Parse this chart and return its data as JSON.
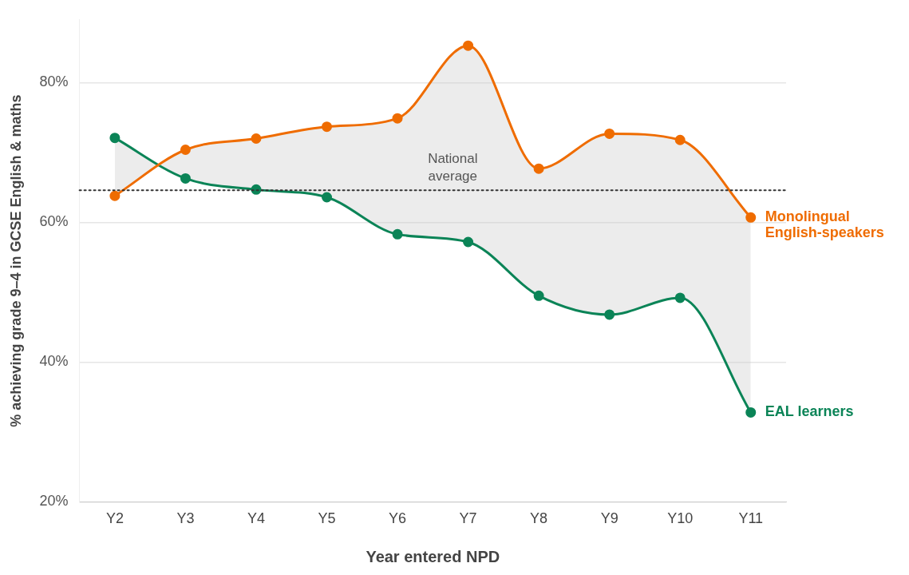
{
  "chart_data": {
    "type": "line",
    "xlabel": "Year entered NPD",
    "ylabel": "% achieving grade 9–4 in GCSE English & maths",
    "categories": [
      "Y2",
      "Y3",
      "Y4",
      "Y5",
      "Y6",
      "Y7",
      "Y8",
      "Y9",
      "Y10",
      "Y11"
    ],
    "series": [
      {
        "name": "Monolingual English-speakers",
        "color": "#ef6c00",
        "values": [
          63.8,
          70.4,
          72.0,
          73.7,
          74.9,
          85.3,
          67.7,
          72.7,
          71.8,
          60.7
        ],
        "upper": [
          63.8,
          70.4,
          72.0,
          73.7,
          74.9,
          85.3,
          67.7,
          72.7,
          71.8,
          60.7
        ],
        "lower": [
          72.1,
          66.3,
          64.7,
          63.6,
          58.3,
          57.2,
          49.5,
          46.8,
          49.2,
          32.8
        ]
      },
      {
        "name": "EAL learners",
        "color": "#0b8457",
        "values": [
          72.1,
          66.3,
          64.7,
          63.6,
          58.3,
          57.2,
          49.5,
          46.8,
          49.2,
          32.8
        ]
      }
    ],
    "ylim": [
      20,
      89
    ],
    "yticks": [
      {
        "value": 20,
        "label": "20%"
      },
      {
        "value": 40,
        "label": "40%"
      },
      {
        "value": 60,
        "label": "60%"
      },
      {
        "value": 80,
        "label": "80%"
      }
    ],
    "grid": "y",
    "legend": false,
    "marker": "circle",
    "line_style": "solid",
    "ref_lines": [
      {
        "axis": "y",
        "value": 64.6,
        "label": "National average",
        "color": "#333333",
        "line_style": "dotted"
      }
    ]
  }
}
